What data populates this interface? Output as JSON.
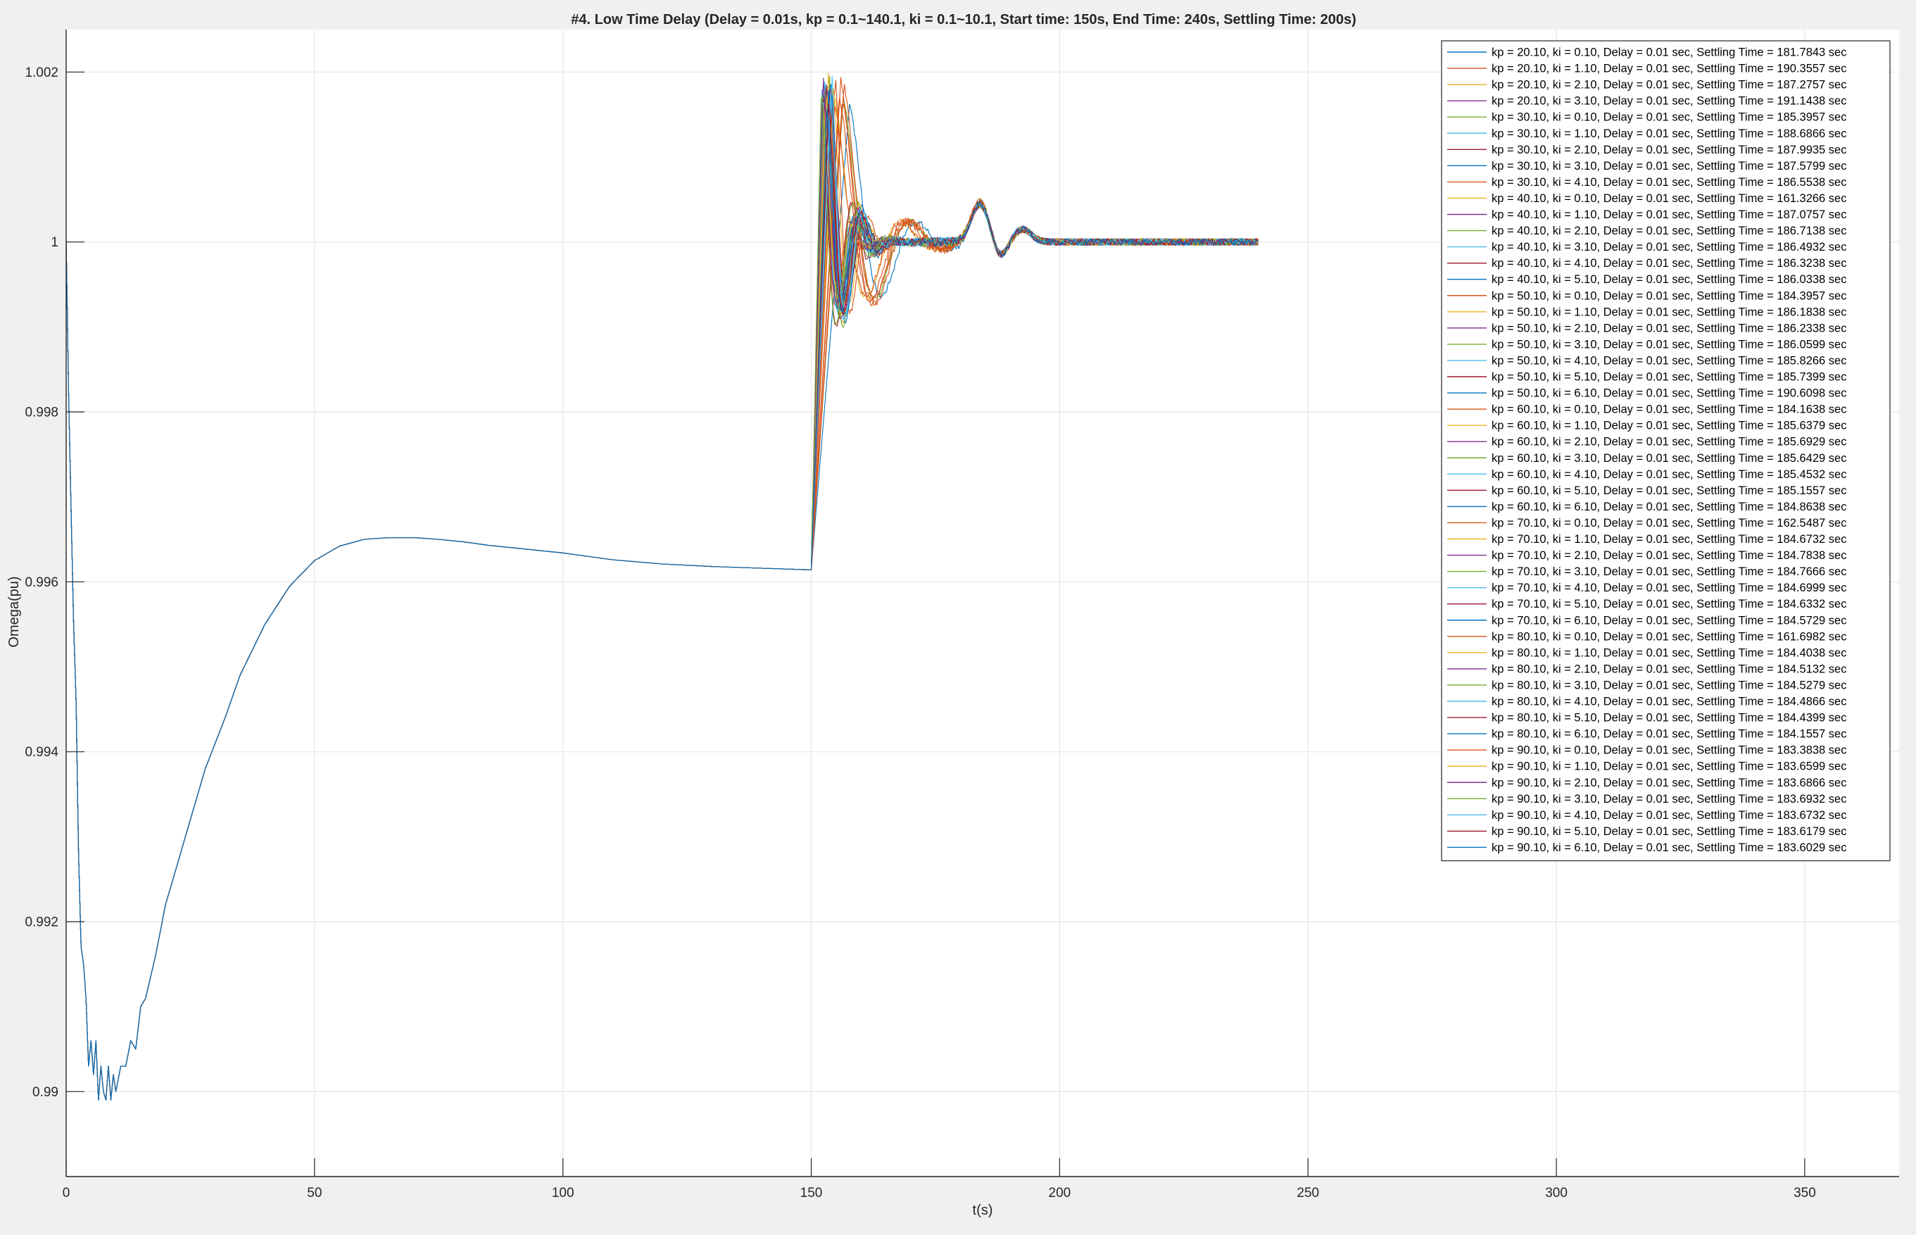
{
  "figure": {
    "background": "#f0f0f0",
    "axes_background": "#ffffff"
  },
  "chart_data": {
    "type": "line",
    "title": "#4. Low Time Delay (Delay = 0.01s, kp = 0.1~140.1, ki = 0.1~10.1, Start time: 150s, End Time: 240s, Settling Time: 200s)",
    "xlabel": "t(s)",
    "ylabel": "Omega(pu)",
    "xlim": [
      0,
      369
    ],
    "ylim": [
      0.989,
      1.0025
    ],
    "xticks": [
      0,
      50,
      100,
      150,
      200,
      250,
      300,
      350
    ],
    "xtick_labels": [
      "0",
      "50",
      "100",
      "150",
      "200",
      "250",
      "300",
      "350"
    ],
    "yticks": [
      0.99,
      0.992,
      0.994,
      0.996,
      0.998,
      1,
      1.002
    ],
    "ytick_labels": [
      "0.99",
      "0.992",
      "0.994",
      "0.996",
      "0.998",
      "1",
      "1.002"
    ],
    "grid": true,
    "legend_position": "top-right",
    "colors": [
      "#0072bd",
      "#d95319",
      "#edb120",
      "#7e2f8e",
      "#77ac30",
      "#4dbeee",
      "#a2142f"
    ],
    "common_response": {
      "x": [
        0,
        0.5,
        1,
        1.5,
        2,
        2.5,
        3,
        3.5,
        4,
        4.5,
        5,
        5.5,
        6,
        6.5,
        7,
        7.5,
        8,
        8.5,
        9,
        9.5,
        10,
        11,
        12,
        13,
        14,
        15,
        16,
        18,
        20,
        22,
        25,
        28,
        30,
        32,
        35,
        40,
        45,
        50,
        55,
        60,
        65,
        70,
        75,
        80,
        85,
        90,
        95,
        100,
        110,
        120,
        130,
        140,
        150
      ],
      "y": [
        1.0,
        0.9982,
        0.9968,
        0.9955,
        0.9946,
        0.9928,
        0.9917,
        0.9915,
        0.9911,
        0.9903,
        0.9906,
        0.9902,
        0.9906,
        0.9899,
        0.9903,
        0.99,
        0.9899,
        0.9903,
        0.9899,
        0.9902,
        0.99,
        0.9903,
        0.9903,
        0.9906,
        0.9905,
        0.991,
        0.9911,
        0.9916,
        0.9922,
        0.9926,
        0.9932,
        0.9938,
        0.9941,
        0.9944,
        0.9949,
        0.9955,
        0.99595,
        0.99625,
        0.99642,
        0.9965,
        0.99652,
        0.99652,
        0.9965,
        0.99647,
        0.99643,
        0.9964,
        0.99637,
        0.99634,
        0.99626,
        0.99621,
        0.99618,
        0.99616,
        0.99614
      ]
    },
    "series": [
      {
        "kp": 20.1,
        "ki": 0.1,
        "delay": 0.01,
        "settling_time": 181.7843,
        "label": "kp = 20.10, ki = 0.10, Delay = 0.01 sec, Settling Time = 181.7843 sec"
      },
      {
        "kp": 20.1,
        "ki": 1.1,
        "delay": 0.01,
        "settling_time": 190.3557,
        "label": "kp = 20.10, ki = 1.10, Delay = 0.01 sec, Settling Time = 190.3557 sec"
      },
      {
        "kp": 20.1,
        "ki": 2.1,
        "delay": 0.01,
        "settling_time": 187.2757,
        "label": "kp = 20.10, ki = 2.10, Delay = 0.01 sec, Settling Time = 187.2757 sec"
      },
      {
        "kp": 20.1,
        "ki": 3.1,
        "delay": 0.01,
        "settling_time": 191.1438,
        "label": "kp = 20.10, ki = 3.10, Delay = 0.01 sec, Settling Time = 191.1438 sec"
      },
      {
        "kp": 30.1,
        "ki": 0.1,
        "delay": 0.01,
        "settling_time": 185.3957,
        "label": "kp = 30.10, ki = 0.10, Delay = 0.01 sec, Settling Time = 185.3957 sec"
      },
      {
        "kp": 30.1,
        "ki": 1.1,
        "delay": 0.01,
        "settling_time": 188.6866,
        "label": "kp = 30.10, ki = 1.10, Delay = 0.01 sec, Settling Time = 188.6866 sec"
      },
      {
        "kp": 30.1,
        "ki": 2.1,
        "delay": 0.01,
        "settling_time": 187.9935,
        "label": "kp = 30.10, ki = 2.10, Delay = 0.01 sec, Settling Time = 187.9935 sec"
      },
      {
        "kp": 30.1,
        "ki": 3.1,
        "delay": 0.01,
        "settling_time": 187.5799,
        "label": "kp = 30.10, ki = 3.10, Delay = 0.01 sec, Settling Time = 187.5799 sec"
      },
      {
        "kp": 30.1,
        "ki": 4.1,
        "delay": 0.01,
        "settling_time": 186.5538,
        "label": "kp = 30.10, ki = 4.10, Delay = 0.01 sec, Settling Time = 186.5538 sec"
      },
      {
        "kp": 40.1,
        "ki": 0.1,
        "delay": 0.01,
        "settling_time": 161.3266,
        "label": "kp = 40.10, ki = 0.10, Delay = 0.01 sec, Settling Time = 161.3266 sec"
      },
      {
        "kp": 40.1,
        "ki": 1.1,
        "delay": 0.01,
        "settling_time": 187.0757,
        "label": "kp = 40.10, ki = 1.10, Delay = 0.01 sec, Settling Time = 187.0757 sec"
      },
      {
        "kp": 40.1,
        "ki": 2.1,
        "delay": 0.01,
        "settling_time": 186.7138,
        "label": "kp = 40.10, ki = 2.10, Delay = 0.01 sec, Settling Time = 186.7138 sec"
      },
      {
        "kp": 40.1,
        "ki": 3.1,
        "delay": 0.01,
        "settling_time": 186.4932,
        "label": "kp = 40.10, ki = 3.10, Delay = 0.01 sec, Settling Time = 186.4932 sec"
      },
      {
        "kp": 40.1,
        "ki": 4.1,
        "delay": 0.01,
        "settling_time": 186.3238,
        "label": "kp = 40.10, ki = 4.10, Delay = 0.01 sec, Settling Time = 186.3238 sec"
      },
      {
        "kp": 40.1,
        "ki": 5.1,
        "delay": 0.01,
        "settling_time": 186.0338,
        "label": "kp = 40.10, ki = 5.10, Delay = 0.01 sec, Settling Time = 186.0338 sec"
      },
      {
        "kp": 50.1,
        "ki": 0.1,
        "delay": 0.01,
        "settling_time": 184.3957,
        "label": "kp = 50.10, ki = 0.10, Delay = 0.01 sec, Settling Time = 184.3957 sec"
      },
      {
        "kp": 50.1,
        "ki": 1.1,
        "delay": 0.01,
        "settling_time": 186.1838,
        "label": "kp = 50.10, ki = 1.10, Delay = 0.01 sec, Settling Time = 186.1838 sec"
      },
      {
        "kp": 50.1,
        "ki": 2.1,
        "delay": 0.01,
        "settling_time": 186.2338,
        "label": "kp = 50.10, ki = 2.10, Delay = 0.01 sec, Settling Time = 186.2338 sec"
      },
      {
        "kp": 50.1,
        "ki": 3.1,
        "delay": 0.01,
        "settling_time": 186.0599,
        "label": "kp = 50.10, ki = 3.10, Delay = 0.01 sec, Settling Time = 186.0599 sec"
      },
      {
        "kp": 50.1,
        "ki": 4.1,
        "delay": 0.01,
        "settling_time": 185.8266,
        "label": "kp = 50.10, ki = 4.10, Delay = 0.01 sec, Settling Time = 185.8266 sec"
      },
      {
        "kp": 50.1,
        "ki": 5.1,
        "delay": 0.01,
        "settling_time": 185.7399,
        "label": "kp = 50.10, ki = 5.10, Delay = 0.01 sec, Settling Time = 185.7399 sec"
      },
      {
        "kp": 50.1,
        "ki": 6.1,
        "delay": 0.01,
        "settling_time": 190.6098,
        "label": "kp = 50.10, ki = 6.10, Delay = 0.01 sec, Settling Time = 190.6098 sec"
      },
      {
        "kp": 60.1,
        "ki": 0.1,
        "delay": 0.01,
        "settling_time": 184.1638,
        "label": "kp = 60.10, ki = 0.10, Delay = 0.01 sec, Settling Time = 184.1638 sec"
      },
      {
        "kp": 60.1,
        "ki": 1.1,
        "delay": 0.01,
        "settling_time": 185.6379,
        "label": "kp = 60.10, ki = 1.10, Delay = 0.01 sec, Settling Time = 185.6379 sec"
      },
      {
        "kp": 60.1,
        "ki": 2.1,
        "delay": 0.01,
        "settling_time": 185.6929,
        "label": "kp = 60.10, ki = 2.10, Delay = 0.01 sec, Settling Time = 185.6929 sec"
      },
      {
        "kp": 60.1,
        "ki": 3.1,
        "delay": 0.01,
        "settling_time": 185.6429,
        "label": "kp = 60.10, ki = 3.10, Delay = 0.01 sec, Settling Time = 185.6429 sec"
      },
      {
        "kp": 60.1,
        "ki": 4.1,
        "delay": 0.01,
        "settling_time": 185.4532,
        "label": "kp = 60.10, ki = 4.10, Delay = 0.01 sec, Settling Time = 185.4532 sec"
      },
      {
        "kp": 60.1,
        "ki": 5.1,
        "delay": 0.01,
        "settling_time": 185.1557,
        "label": "kp = 60.10, ki = 5.10, Delay = 0.01 sec, Settling Time = 185.1557 sec"
      },
      {
        "kp": 60.1,
        "ki": 6.1,
        "delay": 0.01,
        "settling_time": 184.8638,
        "label": "kp = 60.10, ki = 6.10, Delay = 0.01 sec, Settling Time = 184.8638 sec"
      },
      {
        "kp": 70.1,
        "ki": 0.1,
        "delay": 0.01,
        "settling_time": 162.5487,
        "label": "kp = 70.10, ki = 0.10, Delay = 0.01 sec, Settling Time = 162.5487 sec"
      },
      {
        "kp": 70.1,
        "ki": 1.1,
        "delay": 0.01,
        "settling_time": 184.6732,
        "label": "kp = 70.10, ki = 1.10, Delay = 0.01 sec, Settling Time = 184.6732 sec"
      },
      {
        "kp": 70.1,
        "ki": 2.1,
        "delay": 0.01,
        "settling_time": 184.7838,
        "label": "kp = 70.10, ki = 2.10, Delay = 0.01 sec, Settling Time = 184.7838 sec"
      },
      {
        "kp": 70.1,
        "ki": 3.1,
        "delay": 0.01,
        "settling_time": 184.7666,
        "label": "kp = 70.10, ki = 3.10, Delay = 0.01 sec, Settling Time = 184.7666 sec"
      },
      {
        "kp": 70.1,
        "ki": 4.1,
        "delay": 0.01,
        "settling_time": 184.6999,
        "label": "kp = 70.10, ki = 4.10, Delay = 0.01 sec, Settling Time = 184.6999 sec"
      },
      {
        "kp": 70.1,
        "ki": 5.1,
        "delay": 0.01,
        "settling_time": 184.6332,
        "label": "kp = 70.10, ki = 5.10, Delay = 0.01 sec, Settling Time = 184.6332 sec"
      },
      {
        "kp": 70.1,
        "ki": 6.1,
        "delay": 0.01,
        "settling_time": 184.5729,
        "label": "kp = 70.10, ki = 6.10, Delay = 0.01 sec, Settling Time = 184.5729 sec"
      },
      {
        "kp": 80.1,
        "ki": 0.1,
        "delay": 0.01,
        "settling_time": 161.6982,
        "label": "kp = 80.10, ki = 0.10, Delay = 0.01 sec, Settling Time = 161.6982 sec"
      },
      {
        "kp": 80.1,
        "ki": 1.1,
        "delay": 0.01,
        "settling_time": 184.4038,
        "label": "kp = 80.10, ki = 1.10, Delay = 0.01 sec, Settling Time = 184.4038 sec"
      },
      {
        "kp": 80.1,
        "ki": 2.1,
        "delay": 0.01,
        "settling_time": 184.5132,
        "label": "kp = 80.10, ki = 2.10, Delay = 0.01 sec, Settling Time = 184.5132 sec"
      },
      {
        "kp": 80.1,
        "ki": 3.1,
        "delay": 0.01,
        "settling_time": 184.5279,
        "label": "kp = 80.10, ki = 3.10, Delay = 0.01 sec, Settling Time = 184.5279 sec"
      },
      {
        "kp": 80.1,
        "ki": 4.1,
        "delay": 0.01,
        "settling_time": 184.4866,
        "label": "kp = 80.10, ki = 4.10, Delay = 0.01 sec, Settling Time = 184.4866 sec"
      },
      {
        "kp": 80.1,
        "ki": 5.1,
        "delay": 0.01,
        "settling_time": 184.4399,
        "label": "kp = 80.10, ki = 5.10, Delay = 0.01 sec, Settling Time = 184.4399 sec"
      },
      {
        "kp": 80.1,
        "ki": 6.1,
        "delay": 0.01,
        "settling_time": 184.1557,
        "label": "kp = 80.10, ki = 6.10, Delay = 0.01 sec, Settling Time = 184.1557 sec"
      },
      {
        "kp": 90.1,
        "ki": 0.1,
        "delay": 0.01,
        "settling_time": 183.3838,
        "label": "kp = 90.10, ki = 0.10, Delay = 0.01 sec, Settling Time = 183.3838 sec"
      },
      {
        "kp": 90.1,
        "ki": 1.1,
        "delay": 0.01,
        "settling_time": 183.6599,
        "label": "kp = 90.10, ki = 1.10, Delay = 0.01 sec, Settling Time = 183.6599 sec"
      },
      {
        "kp": 90.1,
        "ki": 2.1,
        "delay": 0.01,
        "settling_time": 183.6866,
        "label": "kp = 90.10, ki = 2.10, Delay = 0.01 sec, Settling Time = 183.6866 sec"
      },
      {
        "kp": 90.1,
        "ki": 3.1,
        "delay": 0.01,
        "settling_time": 183.6932,
        "label": "kp = 90.10, ki = 3.10, Delay = 0.01 sec, Settling Time = 183.6932 sec"
      },
      {
        "kp": 90.1,
        "ki": 4.1,
        "delay": 0.01,
        "settling_time": 183.6732,
        "label": "kp = 90.10, ki = 4.10, Delay = 0.01 sec, Settling Time = 183.6732 sec"
      },
      {
        "kp": 90.1,
        "ki": 5.1,
        "delay": 0.01,
        "settling_time": 183.6179,
        "label": "kp = 90.10, ki = 5.10, Delay = 0.01 sec, Settling Time = 183.6179 sec"
      },
      {
        "kp": 90.1,
        "ki": 6.1,
        "delay": 0.01,
        "settling_time": 183.6029,
        "label": "kp = 90.10, ki = 6.10, Delay = 0.01 sec, Settling Time = 183.6029 sec"
      }
    ]
  }
}
